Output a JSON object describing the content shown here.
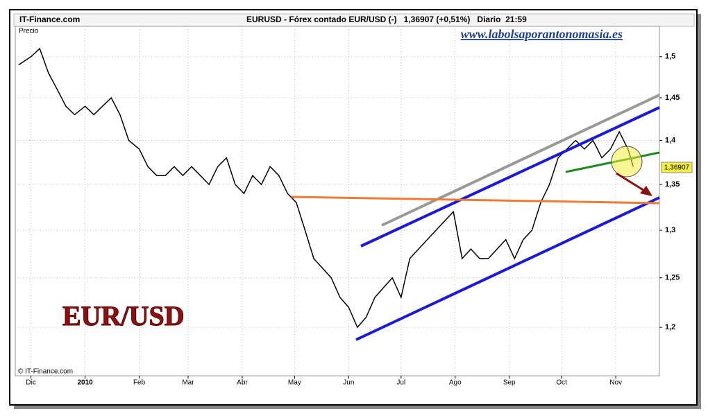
{
  "chart_data": {
    "type": "line",
    "source": "IT-Finance.com",
    "title": "EURUSD - Fórex contado EUR/USD (-)   1,36907 (+0,51%)   Diario  21:59",
    "watermark": "www.labolsaporantonomasia.es",
    "y_label": "Precio",
    "annotation": "EUR/USD",
    "copyright": "© IT-Finance.com",
    "last_price_label": "1,36907",
    "log_scale": true,
    "grid": true,
    "color": "#000000",
    "xlim": [
      -9,
      360
    ],
    "ylim": [
      1.153,
      1.538
    ],
    "xticks": [
      {
        "value": 0,
        "label": "Dic"
      },
      {
        "value": 31,
        "label": "2010"
      },
      {
        "value": 62,
        "label": "Feb"
      },
      {
        "value": 90,
        "label": "Mar"
      },
      {
        "value": 121,
        "label": "Abr"
      },
      {
        "value": 151,
        "label": "May"
      },
      {
        "value": 182,
        "label": "Jun"
      },
      {
        "value": 212,
        "label": "Jul"
      },
      {
        "value": 243,
        "label": "Ago"
      },
      {
        "value": 274,
        "label": "Sep"
      },
      {
        "value": 304,
        "label": "Oct"
      },
      {
        "value": 335,
        "label": "Nov"
      }
    ],
    "yticks": [
      {
        "value": 1.2,
        "label": "1,2"
      },
      {
        "value": 1.25,
        "label": "1,25"
      },
      {
        "value": 1.3,
        "label": "1,3"
      },
      {
        "value": 1.35,
        "label": "1,35"
      },
      {
        "value": 1.4,
        "label": "1,4"
      },
      {
        "value": 1.45,
        "label": "1,45"
      },
      {
        "value": 1.5,
        "label": "1,5"
      }
    ],
    "x": [
      -7,
      0,
      5,
      10,
      15,
      20,
      25,
      31,
      36,
      41,
      46,
      51,
      56,
      62,
      67,
      72,
      77,
      82,
      87,
      92,
      97,
      102,
      107,
      112,
      117,
      122,
      127,
      132,
      137,
      142,
      147,
      152,
      157,
      162,
      167,
      172,
      177,
      182,
      187,
      192,
      197,
      202,
      207,
      212,
      217,
      222,
      227,
      232,
      237,
      242,
      247,
      252,
      257,
      262,
      267,
      272,
      277,
      282,
      287,
      292,
      297,
      302,
      307,
      312,
      317,
      322,
      327,
      332,
      337,
      342,
      345
    ],
    "values": [
      1.49,
      1.5,
      1.51,
      1.48,
      1.46,
      1.44,
      1.43,
      1.44,
      1.43,
      1.44,
      1.45,
      1.43,
      1.4,
      1.39,
      1.37,
      1.36,
      1.36,
      1.37,
      1.36,
      1.37,
      1.36,
      1.35,
      1.37,
      1.38,
      1.35,
      1.34,
      1.36,
      1.35,
      1.37,
      1.36,
      1.34,
      1.33,
      1.3,
      1.27,
      1.26,
      1.25,
      1.23,
      1.22,
      1.2,
      1.21,
      1.23,
      1.24,
      1.25,
      1.23,
      1.27,
      1.28,
      1.29,
      1.3,
      1.31,
      1.32,
      1.27,
      1.28,
      1.27,
      1.27,
      1.28,
      1.29,
      1.27,
      1.29,
      1.3,
      1.33,
      1.35,
      1.38,
      1.39,
      1.4,
      1.39,
      1.4,
      1.38,
      1.39,
      1.41,
      1.39,
      1.37
    ]
  }
}
